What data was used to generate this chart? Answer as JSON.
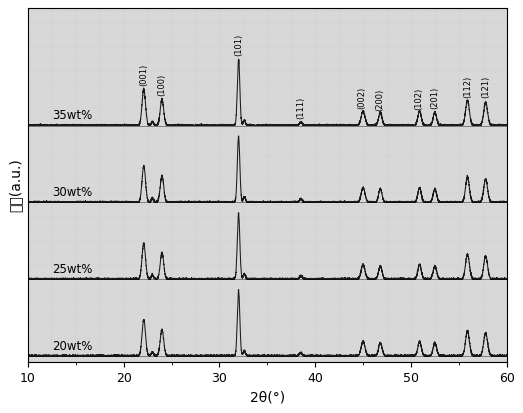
{
  "xlabel": "2θ(°)",
  "ylabel": "强度(a.u.)",
  "xmin": 10,
  "xmax": 60,
  "labels": [
    "20wt%",
    "25wt%",
    "30wt%",
    "35wt%"
  ],
  "offsets": [
    0.0,
    0.95,
    1.9,
    2.85
  ],
  "peak_labels_35": [
    {
      "label": "(001)",
      "x": 22.1
    },
    {
      "label": "(100)",
      "x": 24.0
    },
    {
      "label": "(101)",
      "x": 32.0
    },
    {
      "label": "(111)",
      "x": 38.5
    },
    {
      "label": "(002)",
      "x": 44.9
    },
    {
      "label": "(200)",
      "x": 46.7
    },
    {
      "label": "(102)",
      "x": 50.8
    },
    {
      "label": "(201)",
      "x": 52.5
    },
    {
      "label": "(112)",
      "x": 55.9
    },
    {
      "label": "(121)",
      "x": 57.8
    }
  ],
  "line_color": "#1a1a1a",
  "bg_color": "#d8d8d8",
  "fig_bg": "#ffffff"
}
